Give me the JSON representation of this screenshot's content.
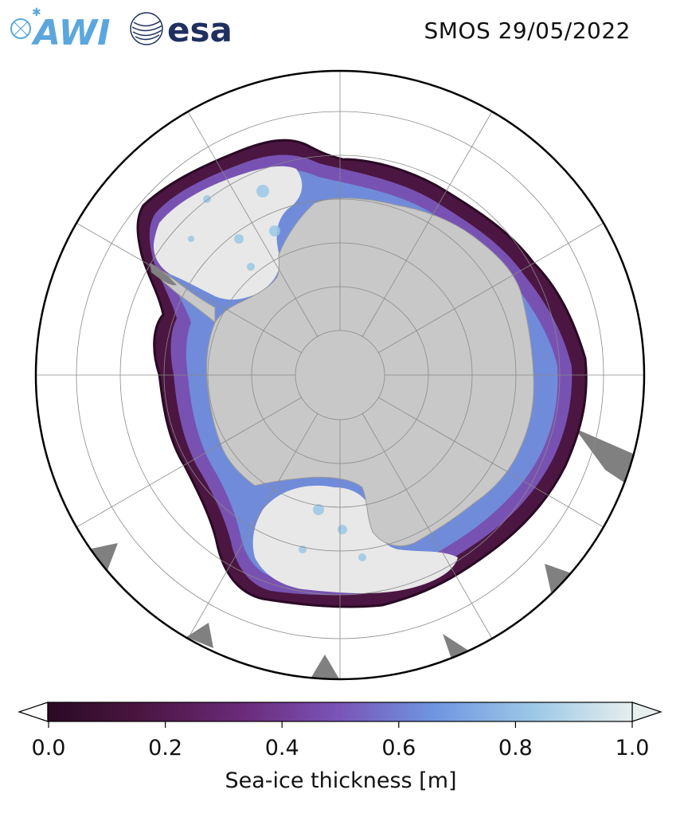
{
  "header": {
    "title": "SMOS 29/05/2022",
    "logos": [
      {
        "name": "awi-logo",
        "text": "AWI",
        "color": "#5ba7dd"
      },
      {
        "name": "esa-logo",
        "text": "esa",
        "color": "#1f3060"
      }
    ]
  },
  "map": {
    "projection": "south-polar-stereographic",
    "land_color": "#c8c8c8",
    "thick_ice_color": "#e8e8e8",
    "no_data_color": "#808080",
    "graticule": true
  },
  "colorbar": {
    "label": "Sea-ice thickness [m]",
    "min": 0.0,
    "max": 1.0,
    "ticks": [
      "0.0",
      "0.2",
      "0.4",
      "0.6",
      "0.8",
      "1.0"
    ],
    "colors": [
      "#2a0a24",
      "#4b1642",
      "#6a2a78",
      "#7a55b8",
      "#6f95e0",
      "#9cc8e6",
      "#e6eeee"
    ]
  }
}
